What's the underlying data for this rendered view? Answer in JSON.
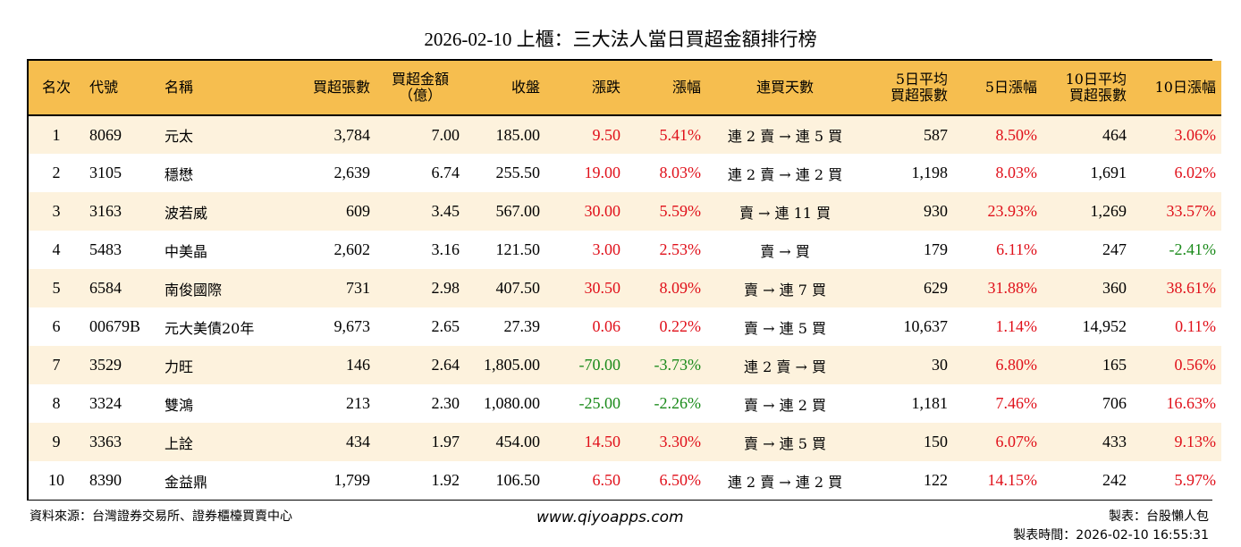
{
  "title": "2026-02-10 上櫃：三大法人當日買超金額排行榜",
  "headers": [
    "名次",
    "代號",
    "名稱",
    "買超張數",
    "買超金額\n（億）",
    "收盤",
    "漲跌",
    "漲幅",
    "連買天數",
    "5日平均\n買超張數",
    "5日漲幅",
    "10日平均\n買超張數",
    "10日漲幅"
  ],
  "colors": {
    "header_bg": "#f6be4f",
    "row_odd_bg": "#fdf2dd",
    "up": "#e0101a",
    "down": "#1a8a1a"
  },
  "rows": [
    {
      "rank": "1",
      "code": "8069",
      "name": "元太",
      "buy_lots": "3,784",
      "buy_amount": "7.00",
      "close": "185.00",
      "change": "9.50",
      "pct": "5.41%",
      "streak": "連 2 賣 → 連 5 買",
      "avg5": "587",
      "pct5": "8.50%",
      "avg10": "464",
      "pct10": "3.06%"
    },
    {
      "rank": "2",
      "code": "3105",
      "name": "穩懋",
      "buy_lots": "2,639",
      "buy_amount": "6.74",
      "close": "255.50",
      "change": "19.00",
      "pct": "8.03%",
      "streak": "連 2 賣 → 連 2 買",
      "avg5": "1,198",
      "pct5": "8.03%",
      "avg10": "1,691",
      "pct10": "6.02%"
    },
    {
      "rank": "3",
      "code": "3163",
      "name": "波若威",
      "buy_lots": "609",
      "buy_amount": "3.45",
      "close": "567.00",
      "change": "30.00",
      "pct": "5.59%",
      "streak": "賣 → 連 11 買",
      "avg5": "930",
      "pct5": "23.93%",
      "avg10": "1,269",
      "pct10": "33.57%"
    },
    {
      "rank": "4",
      "code": "5483",
      "name": "中美晶",
      "buy_lots": "2,602",
      "buy_amount": "3.16",
      "close": "121.50",
      "change": "3.00",
      "pct": "2.53%",
      "streak": "賣 → 買",
      "avg5": "179",
      "pct5": "6.11%",
      "avg10": "247",
      "pct10": "-2.41%"
    },
    {
      "rank": "5",
      "code": "6584",
      "name": "南俊國際",
      "buy_lots": "731",
      "buy_amount": "2.98",
      "close": "407.50",
      "change": "30.50",
      "pct": "8.09%",
      "streak": "賣 → 連 7 買",
      "avg5": "629",
      "pct5": "31.88%",
      "avg10": "360",
      "pct10": "38.61%"
    },
    {
      "rank": "6",
      "code": "00679B",
      "name": "元大美債20年",
      "buy_lots": "9,673",
      "buy_amount": "2.65",
      "close": "27.39",
      "change": "0.06",
      "pct": "0.22%",
      "streak": "賣 → 連 5 買",
      "avg5": "10,637",
      "pct5": "1.14%",
      "avg10": "14,952",
      "pct10": "0.11%"
    },
    {
      "rank": "7",
      "code": "3529",
      "name": "力旺",
      "buy_lots": "146",
      "buy_amount": "2.64",
      "close": "1,805.00",
      "change": "-70.00",
      "pct": "-3.73%",
      "streak": "連 2 賣 → 買",
      "avg5": "30",
      "pct5": "6.80%",
      "avg10": "165",
      "pct10": "0.56%"
    },
    {
      "rank": "8",
      "code": "3324",
      "name": "雙鴻",
      "buy_lots": "213",
      "buy_amount": "2.30",
      "close": "1,080.00",
      "change": "-25.00",
      "pct": "-2.26%",
      "streak": "賣 → 連 2 買",
      "avg5": "1,181",
      "pct5": "7.46%",
      "avg10": "706",
      "pct10": "16.63%"
    },
    {
      "rank": "9",
      "code": "3363",
      "name": "上詮",
      "buy_lots": "434",
      "buy_amount": "1.97",
      "close": "454.00",
      "change": "14.50",
      "pct": "3.30%",
      "streak": "賣 → 連 5 買",
      "avg5": "150",
      "pct5": "6.07%",
      "avg10": "433",
      "pct10": "9.13%"
    },
    {
      "rank": "10",
      "code": "8390",
      "name": "金益鼎",
      "buy_lots": "1,799",
      "buy_amount": "1.92",
      "close": "106.50",
      "change": "6.50",
      "pct": "6.50%",
      "streak": "連 2 賣 → 連 2 買",
      "avg5": "122",
      "pct5": "14.15%",
      "avg10": "242",
      "pct10": "5.97%"
    }
  ],
  "footer": {
    "source": "資料來源：台灣證券交易所、證券櫃檯買賣中心",
    "website": "www.qiyoapps.com",
    "author": "製表：台股懶人包",
    "made_time": "製表時間：2026-02-10 16:55:31"
  }
}
